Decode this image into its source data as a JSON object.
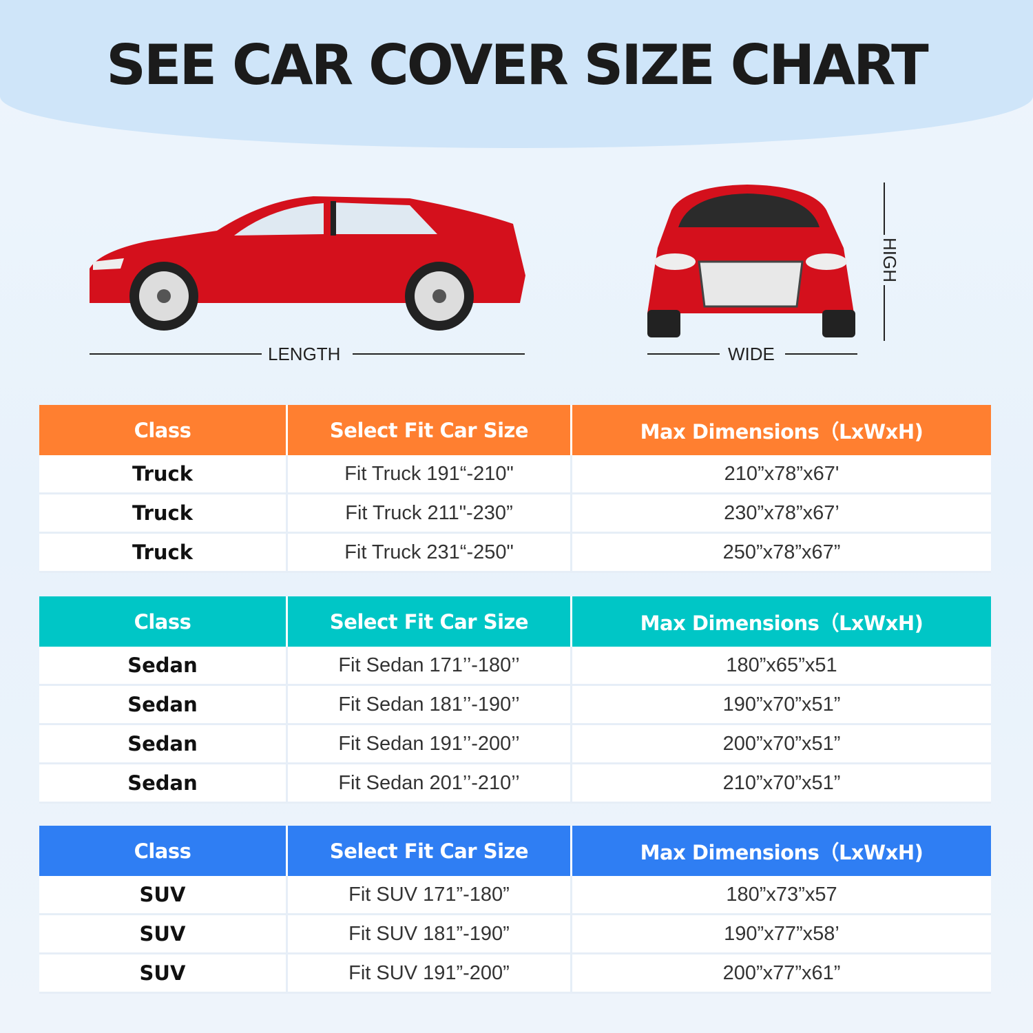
{
  "title": "SEE CAR COVER SIZE CHART",
  "labels": {
    "length": "LENGTH",
    "wide": "WIDE",
    "high": "HIGH"
  },
  "colors": {
    "truck_header": "#ff7f30",
    "sedan_header": "#00c6c6",
    "suv_header": "#2f7ef3",
    "car": "#d4101c"
  },
  "tables": [
    {
      "headers": [
        "Class",
        "Select Fit Car Size",
        "Max Dimensions（LxWxH)"
      ],
      "rows": [
        [
          "Truck",
          "Fit Truck 191“-210\"",
          "210”x78”x67'"
        ],
        [
          "Truck",
          "Fit Truck 211\"-230”",
          "230”x78”x67’"
        ],
        [
          "Truck",
          "Fit Truck 231“-250\"",
          "250”x78”x67”"
        ]
      ]
    },
    {
      "headers": [
        "Class",
        "Select Fit Car Size",
        "Max Dimensions（LxWxH)"
      ],
      "rows": [
        [
          "Sedan",
          "Fit Sedan 171’’-180’’",
          "180”x65”x51"
        ],
        [
          "Sedan",
          "Fit Sedan 181’’-190’’",
          "190”x70”x51”"
        ],
        [
          "Sedan",
          "Fit Sedan 191’’-200’’",
          "200”x70”x51”"
        ],
        [
          "Sedan",
          "Fit Sedan 201’’-210’’",
          "210”x70”x51”"
        ]
      ]
    },
    {
      "headers": [
        "Class",
        "Select Fit Car Size",
        "Max Dimensions（LxWxH)"
      ],
      "rows": [
        [
          "SUV",
          "Fit SUV 171”-180”",
          "180”x73”x57"
        ],
        [
          "SUV",
          "Fit SUV 181”-190”",
          "190”x77”x58’"
        ],
        [
          "SUV",
          "Fit SUV 191”-200”",
          "200”x77”x61”"
        ]
      ]
    }
  ]
}
